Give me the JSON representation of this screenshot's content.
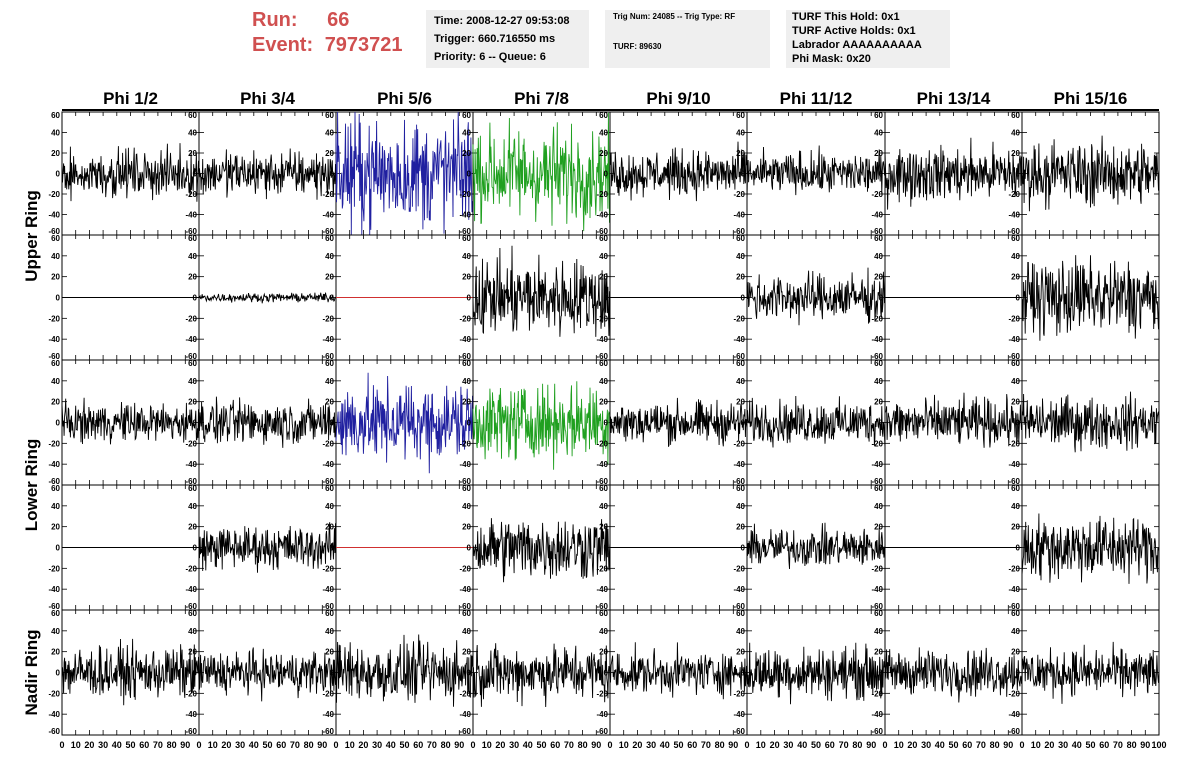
{
  "header": {
    "run_label": "Run:",
    "run_value": "66",
    "event_label": "Event:",
    "event_value": "7973721",
    "time_line": "Time: 2008-12-27 09:53:08",
    "trigger_line": "Trigger: 660.716550 ms",
    "priority_line": "Priority: 6 -- Queue: 6",
    "trig_num_line": "Trig Num: 24085 -- Trig Type: RF",
    "turf_line": "TURF: 89630",
    "turf_hold_line": "TURF This Hold: 0x1",
    "turf_active_line": "TURF Active Holds: 0x1",
    "labrador_line": "Labrador AAAAAAAAAA",
    "phi_mask_line": "Phi Mask: 0x20"
  },
  "colors": {
    "header_red": "#d05050",
    "panel_bg": "#efefef",
    "trace_default": "#000000",
    "trace_blue": "#2020a0",
    "trace_green": "#20a020",
    "trace_flat_red": "#d03030"
  },
  "chart_data": {
    "type": "line",
    "columns": [
      "Phi 1/2",
      "Phi 3/4",
      "Phi 5/6",
      "Phi 7/8",
      "Phi 9/10",
      "Phi 11/12",
      "Phi 13/14",
      "Phi 15/16"
    ],
    "ring_labels": [
      "Upper Ring",
      "Lower Ring",
      "Nadir Ring"
    ],
    "xlim": [
      0,
      100
    ],
    "ylim": [
      -60,
      60
    ],
    "y_ticks": [
      -60,
      -40,
      -20,
      0,
      20,
      40,
      60
    ],
    "x_ticks": [
      0,
      10,
      20,
      30,
      40,
      50,
      60,
      70,
      80,
      90,
      100
    ],
    "x_axis_labels": [
      "0",
      "10",
      "20",
      "30",
      "40",
      "50",
      "60",
      "70",
      "80",
      "90",
      "100"
    ],
    "rows": [
      [
        {
          "amp": 11,
          "color": "default"
        },
        {
          "amp": 11,
          "color": "default"
        },
        {
          "amp": 26,
          "color": "blue"
        },
        {
          "amp": 22,
          "color": "green"
        },
        {
          "amp": 11,
          "color": "default"
        },
        {
          "amp": 10,
          "color": "default"
        },
        {
          "amp": 13,
          "color": "default"
        },
        {
          "amp": 15,
          "color": "default"
        }
      ],
      [
        {
          "amp": 0,
          "color": "flat"
        },
        {
          "amp": 2,
          "color": "default"
        },
        {
          "amp": 0,
          "color": "flat_red"
        },
        {
          "amp": 18,
          "color": "default"
        },
        {
          "amp": 0,
          "color": "flat"
        },
        {
          "amp": 11,
          "color": "default"
        },
        {
          "amp": 0,
          "color": "flat"
        },
        {
          "amp": 18,
          "color": "default"
        }
      ],
      [
        {
          "amp": 9,
          "color": "default"
        },
        {
          "amp": 10,
          "color": "default"
        },
        {
          "amp": 18,
          "color": "blue"
        },
        {
          "amp": 17,
          "color": "green"
        },
        {
          "amp": 10,
          "color": "default"
        },
        {
          "amp": 10,
          "color": "default"
        },
        {
          "amp": 11,
          "color": "default"
        },
        {
          "amp": 12,
          "color": "default"
        }
      ],
      [
        {
          "amp": 0,
          "color": "flat"
        },
        {
          "amp": 10,
          "color": "default"
        },
        {
          "amp": 0,
          "color": "flat_red"
        },
        {
          "amp": 15,
          "color": "default"
        },
        {
          "amp": 0,
          "color": "flat"
        },
        {
          "amp": 9,
          "color": "default"
        },
        {
          "amp": 0,
          "color": "flat"
        },
        {
          "amp": 15,
          "color": "default"
        }
      ],
      [
        {
          "amp": 12,
          "color": "default"
        },
        {
          "amp": 10,
          "color": "default"
        },
        {
          "amp": 14,
          "color": "default"
        },
        {
          "amp": 13,
          "color": "default"
        },
        {
          "amp": 10,
          "color": "default"
        },
        {
          "amp": 12,
          "color": "default"
        },
        {
          "amp": 11,
          "color": "default"
        },
        {
          "amp": 11,
          "color": "default"
        }
      ]
    ]
  }
}
